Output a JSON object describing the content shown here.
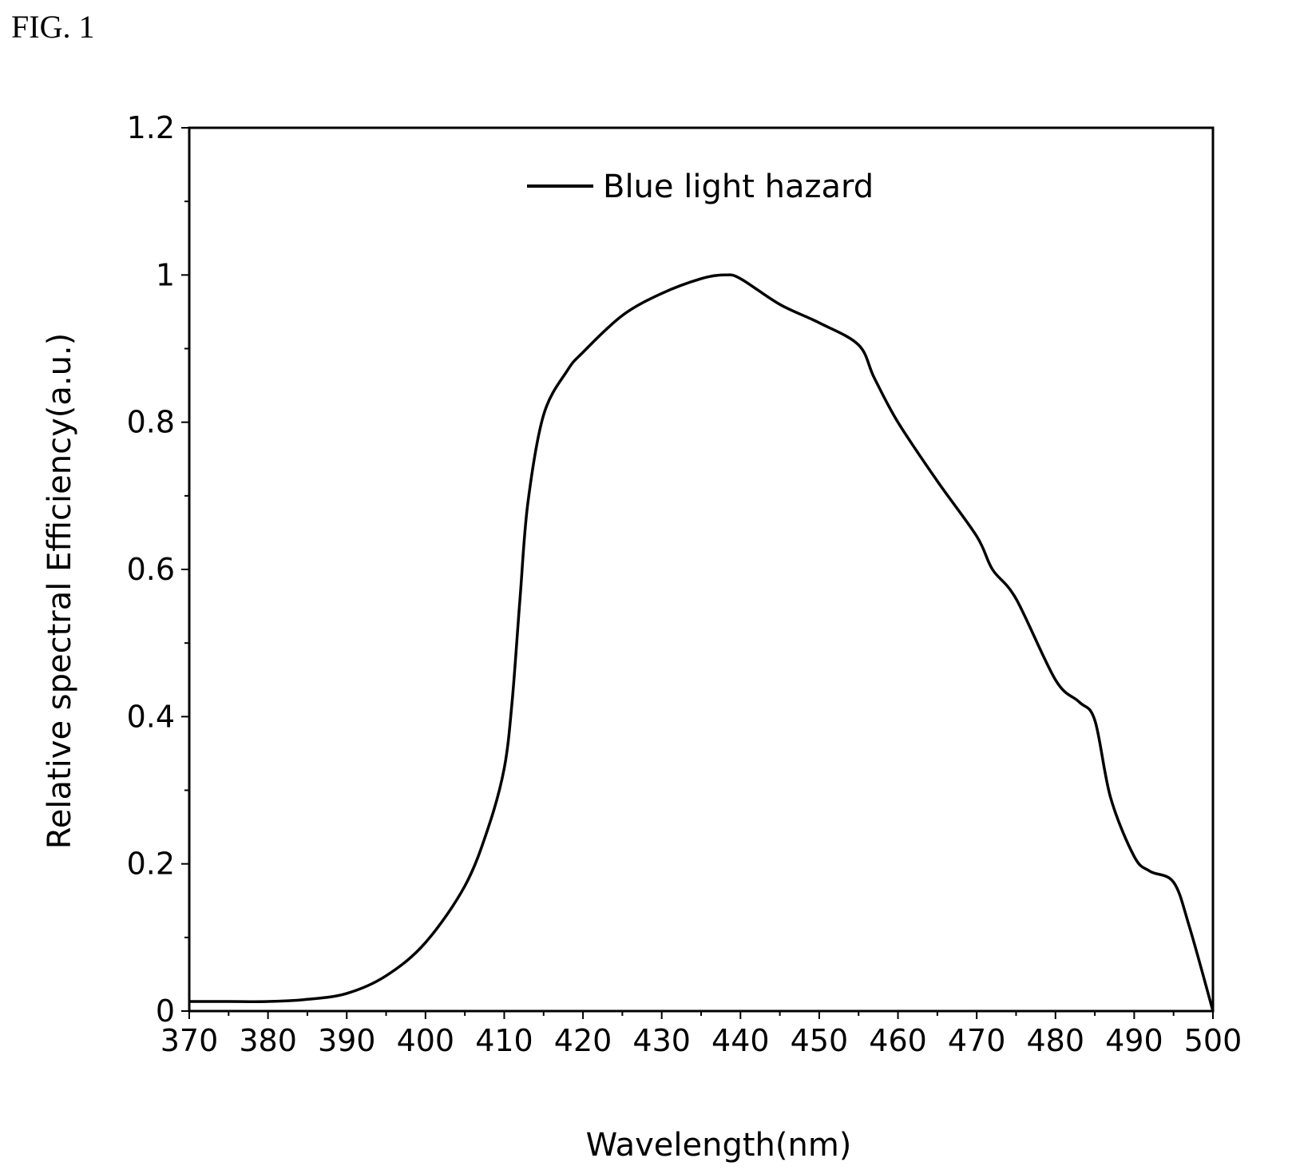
{
  "figure_label": "FIG. 1",
  "chart_data": {
    "type": "line",
    "xlabel": "Wavelength(nm)",
    "ylabel": "Relative spectral Efficiency(a.u.)",
    "xlim": [
      370,
      500
    ],
    "ylim": [
      0,
      1.2
    ],
    "xticks": [
      370,
      380,
      390,
      400,
      410,
      420,
      430,
      440,
      450,
      460,
      470,
      480,
      490,
      500
    ],
    "yticks": [
      0,
      0.2,
      0.4,
      0.6,
      0.8,
      1,
      1.2
    ],
    "ytick_labels": [
      "0",
      "0.2",
      "0.4",
      "0.6",
      "0.8",
      "1",
      "1.2"
    ],
    "grid": false,
    "legend_position": "top-center",
    "series": [
      {
        "name": "Blue light hazard",
        "color": "#000000",
        "x": [
          370,
          375,
          380,
          385,
          390,
          395,
          400,
          405,
          408,
          410,
          411,
          412,
          413,
          415,
          418,
          420,
          425,
          430,
          435,
          438,
          440,
          445,
          450,
          455,
          457,
          460,
          465,
          470,
          472,
          475,
          480,
          483,
          485,
          487,
          490,
          492,
          495,
          497,
          500
        ],
        "y": [
          0.013,
          0.013,
          0.013,
          0.016,
          0.024,
          0.048,
          0.093,
          0.17,
          0.25,
          0.33,
          0.42,
          0.56,
          0.69,
          0.81,
          0.87,
          0.895,
          0.945,
          0.975,
          0.995,
          1.0,
          0.995,
          0.96,
          0.935,
          0.905,
          0.86,
          0.8,
          0.72,
          0.645,
          0.6,
          0.56,
          0.45,
          0.42,
          0.395,
          0.29,
          0.21,
          0.19,
          0.175,
          0.115,
          0.0
        ]
      }
    ]
  }
}
